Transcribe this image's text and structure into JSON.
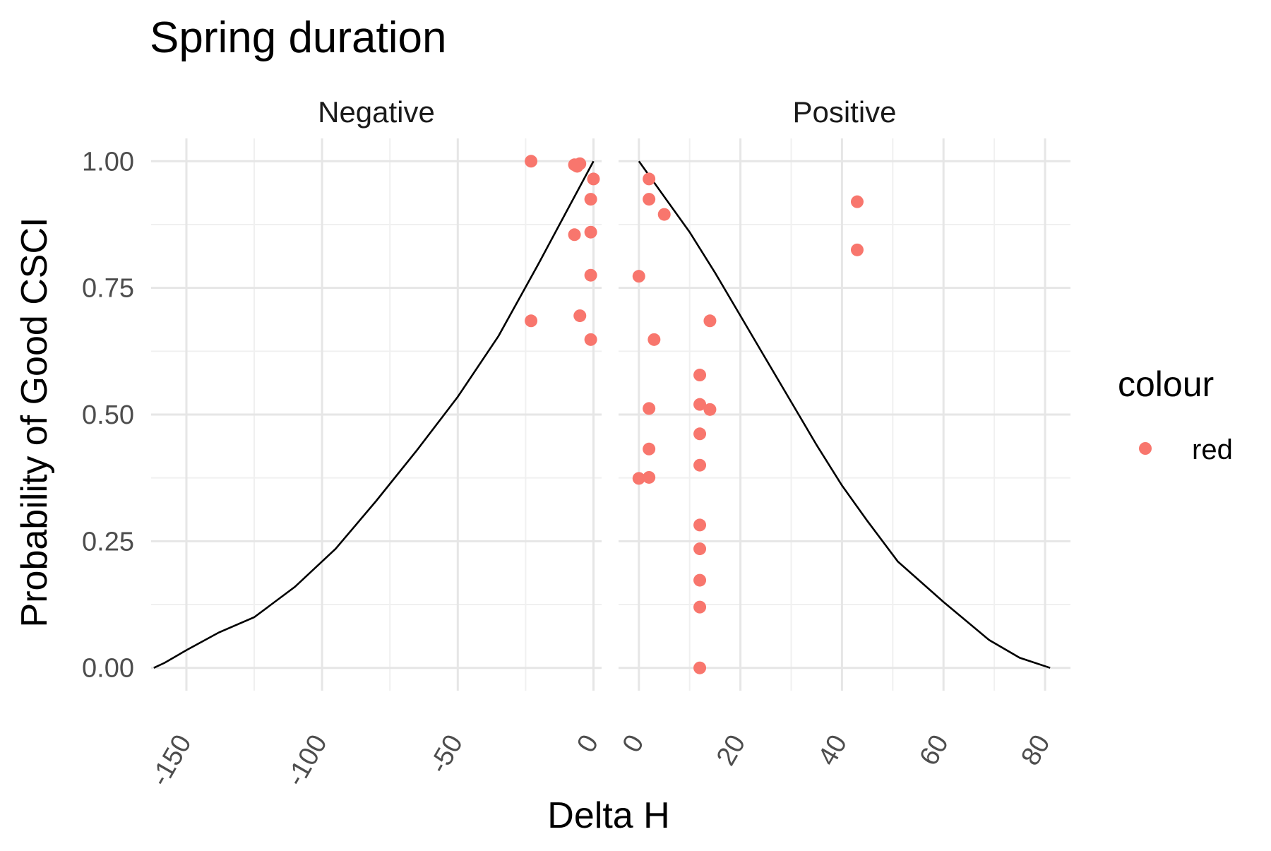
{
  "chart_data": {
    "type": "scatter",
    "title": "Spring duration",
    "xlabel": "Delta H",
    "ylabel": "Probability of Good CSCI",
    "legend": {
      "title": "colour",
      "placement": "right",
      "entries": [
        {
          "label": "red",
          "color": "#F8766D"
        }
      ]
    },
    "grid": true,
    "point_color": "#F8766D",
    "line_color": "#000000",
    "ylim": [
      -0.045,
      1.045
    ],
    "y_ticks": [
      0,
      0.25,
      0.5,
      0.75,
      1.0
    ],
    "y_tick_labels": [
      "0.00",
      "0.25",
      "0.50",
      "0.75",
      "1.00"
    ],
    "panels": [
      {
        "label": "Negative",
        "xlim": [
          -163,
          3
        ],
        "x_ticks": [
          -150,
          -100,
          -50,
          0
        ],
        "x_tick_labels": [
          "-150",
          "-100",
          "-50",
          "0"
        ],
        "x_minor_ticks": [
          -125,
          -75,
          -25
        ],
        "curve": [
          {
            "x": -162,
            "y": 0.0
          },
          {
            "x": -158,
            "y": 0.01
          },
          {
            "x": -150,
            "y": 0.035
          },
          {
            "x": -138,
            "y": 0.07
          },
          {
            "x": -125,
            "y": 0.1
          },
          {
            "x": -110,
            "y": 0.16
          },
          {
            "x": -95,
            "y": 0.235
          },
          {
            "x": -80,
            "y": 0.33
          },
          {
            "x": -65,
            "y": 0.43
          },
          {
            "x": -50,
            "y": 0.535
          },
          {
            "x": -35,
            "y": 0.655
          },
          {
            "x": -20,
            "y": 0.8
          },
          {
            "x": -10,
            "y": 0.9
          },
          {
            "x": 0,
            "y": 1.0
          }
        ],
        "points": [
          {
            "x": -23,
            "y": 1.0
          },
          {
            "x": -5,
            "y": 0.995
          },
          {
            "x": -6,
            "y": 0.99
          },
          {
            "x": -7,
            "y": 0.993
          },
          {
            "x": 0,
            "y": 0.965
          },
          {
            "x": -1,
            "y": 0.925
          },
          {
            "x": -7,
            "y": 0.855
          },
          {
            "x": -1,
            "y": 0.86
          },
          {
            "x": -1,
            "y": 0.775
          },
          {
            "x": -23,
            "y": 0.685
          },
          {
            "x": -5,
            "y": 0.695
          },
          {
            "x": -1,
            "y": 0.648
          }
        ]
      },
      {
        "label": "Positive",
        "xlim": [
          -4,
          85
        ],
        "x_ticks": [
          0,
          20,
          40,
          60,
          80
        ],
        "x_tick_labels": [
          "0",
          "20",
          "40",
          "60",
          "80"
        ],
        "x_minor_ticks": [
          10,
          30,
          50,
          70
        ],
        "curve": [
          {
            "x": 0,
            "y": 1.0
          },
          {
            "x": 5,
            "y": 0.93
          },
          {
            "x": 10,
            "y": 0.86
          },
          {
            "x": 15,
            "y": 0.78
          },
          {
            "x": 20,
            "y": 0.695
          },
          {
            "x": 25,
            "y": 0.61
          },
          {
            "x": 30,
            "y": 0.525
          },
          {
            "x": 35,
            "y": 0.44
          },
          {
            "x": 40,
            "y": 0.36
          },
          {
            "x": 45,
            "y": 0.29
          },
          {
            "x": 51,
            "y": 0.21
          },
          {
            "x": 60,
            "y": 0.13
          },
          {
            "x": 69,
            "y": 0.055
          },
          {
            "x": 75,
            "y": 0.02
          },
          {
            "x": 81,
            "y": 0.0
          }
        ],
        "points": [
          {
            "x": 2,
            "y": 0.965
          },
          {
            "x": 2,
            "y": 0.925
          },
          {
            "x": 5,
            "y": 0.895
          },
          {
            "x": 43,
            "y": 0.92
          },
          {
            "x": 43,
            "y": 0.825
          },
          {
            "x": 0,
            "y": 0.773
          },
          {
            "x": 14,
            "y": 0.685
          },
          {
            "x": 3,
            "y": 0.648
          },
          {
            "x": 12,
            "y": 0.578
          },
          {
            "x": 12,
            "y": 0.52
          },
          {
            "x": 14,
            "y": 0.51
          },
          {
            "x": 2,
            "y": 0.512
          },
          {
            "x": 12,
            "y": 0.462
          },
          {
            "x": 2,
            "y": 0.432
          },
          {
            "x": 12,
            "y": 0.4
          },
          {
            "x": 0,
            "y": 0.374
          },
          {
            "x": 2,
            "y": 0.376
          },
          {
            "x": 12,
            "y": 0.282
          },
          {
            "x": 12,
            "y": 0.235
          },
          {
            "x": 12,
            "y": 0.173
          },
          {
            "x": 12,
            "y": 0.12
          },
          {
            "x": 12,
            "y": 0.0
          }
        ]
      }
    ]
  }
}
